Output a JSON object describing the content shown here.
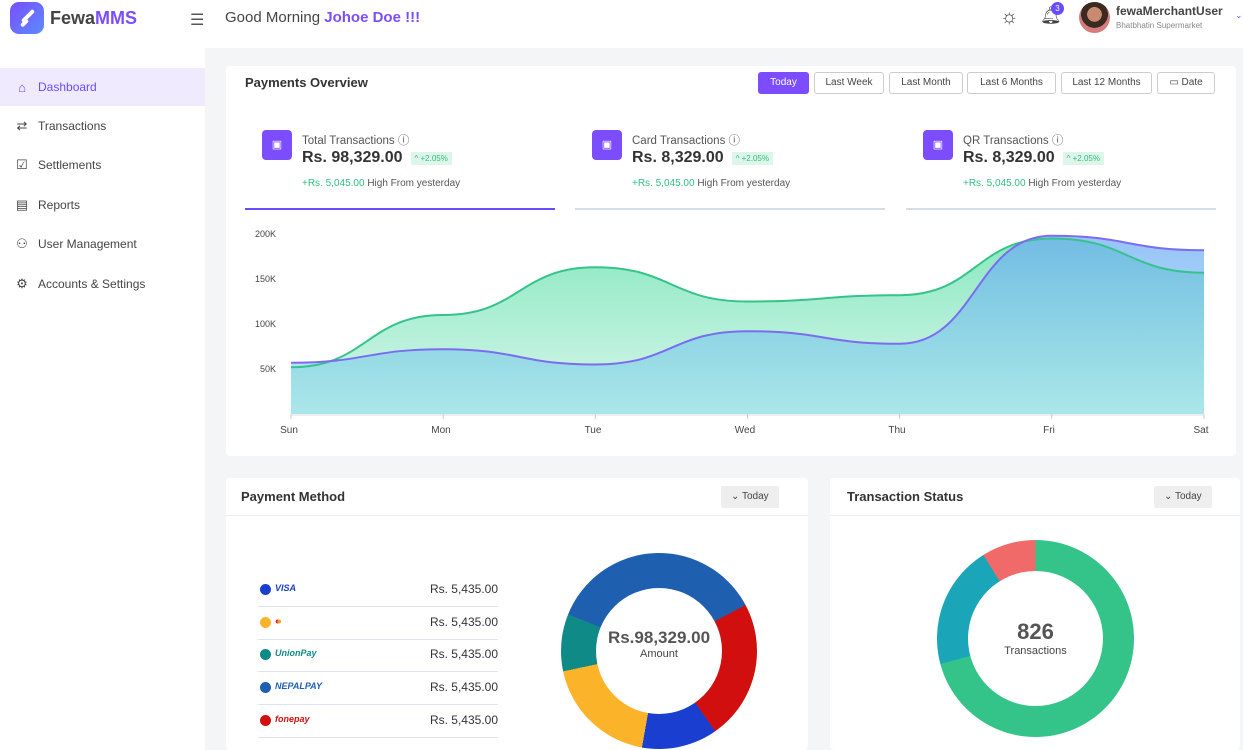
{
  "header": {
    "brand_a": "Fewa",
    "brand_b": "MMS",
    "greeting": "Good Morning",
    "user_greet": "Johoe Doe !!!",
    "notifications": "3",
    "username": "fewaMerchantUser",
    "store": "Bhatbhatin Supermarket"
  },
  "sidebar": {
    "items": [
      {
        "label": "Dashboard",
        "icon": "home-icon"
      },
      {
        "label": "Transactions",
        "icon": "arrows-icon"
      },
      {
        "label": "Settlements",
        "icon": "check-square-icon"
      },
      {
        "label": "Reports",
        "icon": "clipboard-icon"
      },
      {
        "label": "User Management",
        "icon": "users-icon"
      },
      {
        "label": "Accounts & Settings",
        "icon": "gear-icon"
      }
    ]
  },
  "overview": {
    "title": "Payments Overview",
    "filters": [
      "Today",
      "Last Week",
      "Last Month",
      "Last 6 Months",
      "Last 12 Months",
      "Date"
    ],
    "stats": [
      {
        "label": "Total Transactions",
        "value": "Rs. 98,329.00",
        "pct": "^ +2.05%",
        "delta": "+Rs. 5,045.00",
        "delta_text": "High From yesterday"
      },
      {
        "label": "Card Transactions",
        "value": "Rs. 8,329.00",
        "pct": "^ +2.05%",
        "delta": "+Rs. 5,045.00",
        "delta_text": "High From yesterday"
      },
      {
        "label": "QR Transactions",
        "value": "Rs. 8,329.00",
        "pct": "^ +2.05%",
        "delta": "+Rs. 5,045.00",
        "delta_text": "High From yesterday"
      }
    ]
  },
  "chart_data": {
    "type": "area",
    "categories": [
      "Sun",
      "Mon",
      "Tue",
      "Wed",
      "Thu",
      "Fri",
      "Sat"
    ],
    "yticks": [
      "200K",
      "150K",
      "100K",
      "50K"
    ],
    "ylim": [
      0,
      200000
    ],
    "series": [
      {
        "color": "#34c48a",
        "values": [
          52000,
          110000,
          163000,
          125000,
          132000,
          195000,
          157000
        ]
      },
      {
        "color": "#7b6cf0",
        "values": [
          57000,
          72000,
          55000,
          92000,
          78000,
          198000,
          182000
        ]
      }
    ]
  },
  "payment_method": {
    "title": "Payment Method",
    "filter": "Today",
    "total": "Rs.98,329.00",
    "total_label": "Amount",
    "items": [
      {
        "name": "VISA",
        "color": "#1a3fd0",
        "amount": "Rs. 5,435.00"
      },
      {
        "name": "Mastercard",
        "color": "#fbb32a",
        "amount": "Rs. 5,435.00"
      },
      {
        "name": "UnionPay",
        "color": "#0f8a86",
        "amount": "Rs. 5,435.00"
      },
      {
        "name": "NEPALPAY",
        "color": "#1f5fb0",
        "amount": "Rs. 5,435.00"
      },
      {
        "name": "fonepay",
        "color": "#d10f0f",
        "amount": "Rs. 5,435.00"
      }
    ]
  },
  "transaction_status": {
    "title": "Transaction Status",
    "filter": "Today",
    "count": "826",
    "count_label": "Transactions",
    "colors": [
      "#34c48a",
      "#1aa6b8",
      "#f06a6a"
    ]
  }
}
